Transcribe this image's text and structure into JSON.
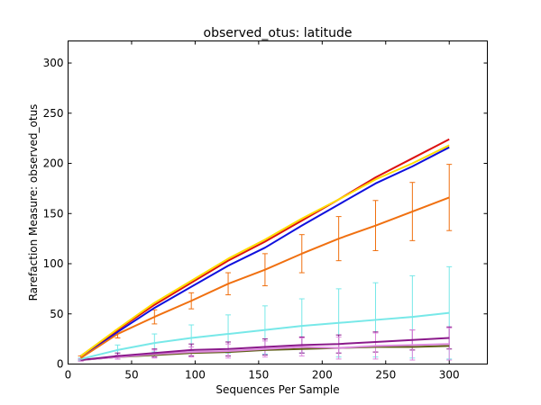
{
  "chart_data": {
    "type": "line",
    "title": "observed_otus: latitude",
    "xlabel": "Sequences Per Sample",
    "ylabel": "Rarefaction Measure: observed_otus",
    "xlim": [
      0,
      330
    ],
    "ylim": [
      0,
      322
    ],
    "xticks": [
      0,
      50,
      100,
      150,
      200,
      250,
      300
    ],
    "yticks": [
      0,
      50,
      100,
      150,
      200,
      250,
      300
    ],
    "grid": false,
    "x": [
      10,
      39,
      68,
      97,
      126,
      155,
      184,
      213,
      242,
      271,
      300
    ],
    "series": [
      {
        "color": "#ffdd00",
        "values": [
          8,
          35,
          61,
          83,
          105,
          124,
          145,
          164,
          184,
          200,
          218
        ]
      },
      {
        "color": "#dd1111",
        "values": [
          8,
          34,
          59,
          81,
          103,
          122,
          143,
          164,
          186,
          205,
          224
        ]
      },
      {
        "color": "#1010dd",
        "values": [
          8,
          32,
          56,
          77,
          98,
          116,
          138,
          159,
          180,
          197,
          216
        ]
      },
      {
        "color": "#f07010",
        "values": [
          6,
          30,
          47,
          63,
          80,
          94,
          110,
          125,
          138,
          152,
          166
        ],
        "error": [
          2,
          4,
          7,
          8,
          11,
          16,
          19,
          22,
          25,
          29,
          33
        ]
      },
      {
        "color": "#77e8e8",
        "values": [
          5,
          14,
          21,
          26,
          30,
          34,
          38,
          41,
          44,
          47,
          51
        ],
        "error": [
          1,
          5,
          9,
          13,
          19,
          24,
          27,
          34,
          37,
          41,
          46
        ]
      },
      {
        "color": "#8b1a8b",
        "values": [
          4,
          8,
          11,
          14,
          15,
          17,
          19,
          20,
          22,
          24,
          26
        ],
        "error": [
          1,
          3,
          4,
          6,
          7,
          8,
          8,
          9,
          10,
          10,
          11
        ]
      },
      {
        "color": "#dd88dd",
        "values": [
          4,
          7,
          10,
          12,
          13,
          15,
          17,
          16,
          18,
          19,
          20
        ],
        "error": [
          1,
          2,
          4,
          5,
          7,
          8,
          9,
          11,
          13,
          15,
          16
        ]
      },
      {
        "color": "#606018",
        "values": [
          4,
          7,
          9,
          11,
          12,
          14,
          15,
          16,
          17,
          17,
          18
        ]
      }
    ]
  }
}
